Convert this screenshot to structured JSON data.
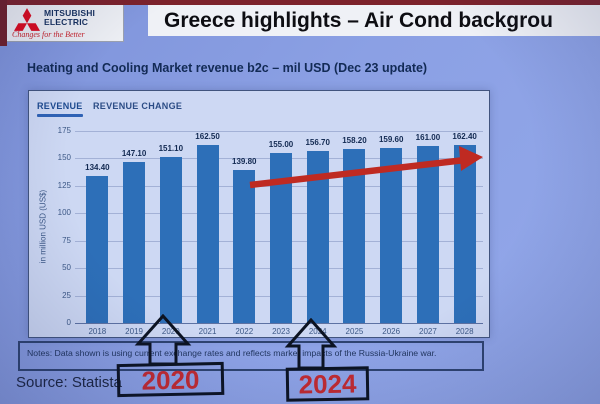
{
  "logo": {
    "brand_line1": "MITSUBISHI",
    "brand_line2": "ELECTRIC",
    "tagline": "Changes for the Better"
  },
  "header": {
    "title": "Greece highlights – Air Cond backgrou"
  },
  "subtitle": "Heating and Cooling Market revenue b2c – mil USD (Dec 23 update)",
  "chart": {
    "tabs": [
      {
        "label": "REVENUE",
        "active": true
      },
      {
        "label": "REVENUE CHANGE",
        "active": false
      }
    ]
  },
  "chart_data": {
    "type": "bar",
    "title": "Heating and Cooling Market revenue b2c – mil USD (Dec 23 update)",
    "categories": [
      "2018",
      "2019",
      "2020",
      "2021",
      "2022",
      "2023",
      "2024",
      "2025",
      "2026",
      "2027",
      "2028"
    ],
    "values": [
      134.4,
      147.1,
      151.1,
      162.5,
      139.8,
      155.0,
      156.7,
      158.2,
      159.6,
      161.0,
      162.4
    ],
    "xlabel": "",
    "ylabel": "in million USD (US$)",
    "ylim": [
      0,
      175
    ],
    "yticks": [
      0,
      25,
      50,
      75,
      100,
      125,
      150,
      175
    ],
    "grid": true,
    "legend": "none",
    "bar_color": "#2d6fb8",
    "annotation": "red upward trend arrow spanning 2022 to 2028"
  },
  "notes": "Notes: Data shown is using current exchange rates and reflects market impacts of the Russia-Ukraine war.",
  "source": "Source: Statista",
  "callouts": [
    {
      "label": "2020"
    },
    {
      "label": "2024"
    }
  ],
  "colors": {
    "bar": "#2d6fb8",
    "trend_arrow": "#bf2a22",
    "callout_red": "#c22a30",
    "mitsubishi_red": "#dc0a1e"
  }
}
